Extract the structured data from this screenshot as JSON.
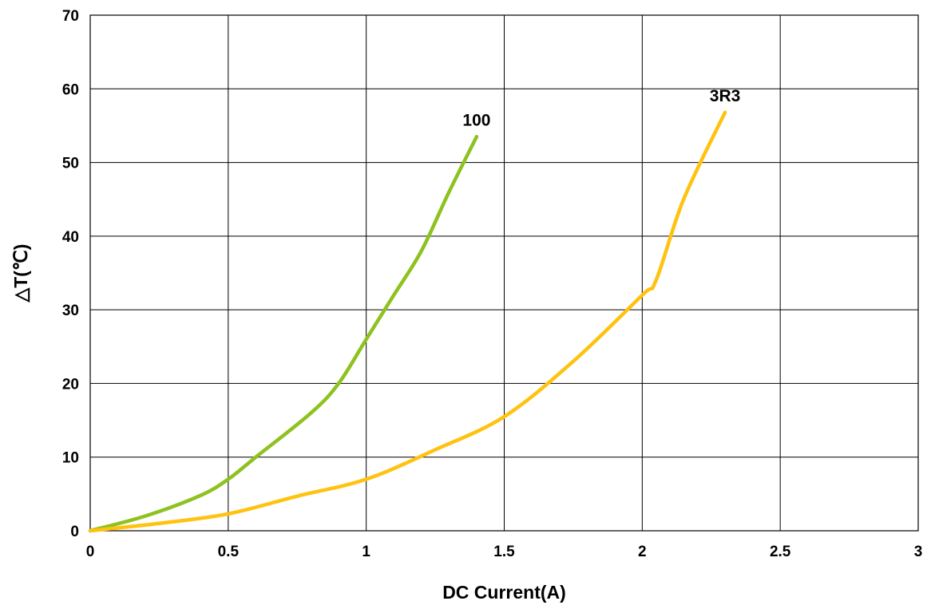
{
  "chart_data": {
    "type": "line",
    "xlabel": "DC Current(A)",
    "ylabel": "△T(℃)",
    "xlim": [
      0,
      3
    ],
    "ylim": [
      0,
      70
    ],
    "x_ticks": [
      0,
      0.5,
      1,
      1.5,
      2,
      2.5,
      3
    ],
    "x_tick_labels": [
      "0",
      "0.5",
      "1",
      "1.5",
      "2",
      "2.5",
      "3"
    ],
    "y_ticks": [
      0,
      10,
      20,
      30,
      40,
      50,
      60,
      70
    ],
    "y_tick_labels": [
      "0",
      "10",
      "20",
      "30",
      "40",
      "50",
      "60",
      "70"
    ],
    "grid": true,
    "series": [
      {
        "name": "100",
        "color": "#8dc21f",
        "x": [
          0,
          0.2,
          0.4,
          0.5,
          0.6,
          0.8,
          0.9,
          1.0,
          1.1,
          1.2,
          1.3,
          1.4
        ],
        "y": [
          0,
          2,
          4.8,
          7,
          10,
          16,
          20,
          26,
          32,
          38,
          46,
          53.5
        ]
      },
      {
        "name": "3R3",
        "color": "#ffc20e",
        "x": [
          0,
          0.25,
          0.5,
          0.75,
          1.0,
          1.25,
          1.5,
          1.75,
          2.0,
          2.05,
          2.15,
          2.3
        ],
        "y": [
          0,
          1,
          2.3,
          4.7,
          7,
          11,
          15.5,
          23,
          32,
          34,
          45,
          56.8
        ]
      }
    ]
  }
}
